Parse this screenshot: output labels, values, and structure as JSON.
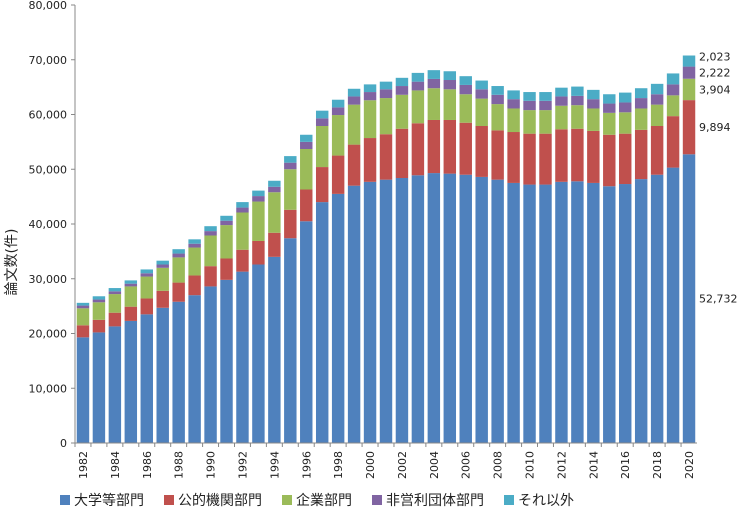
{
  "chart_data": {
    "type": "bar",
    "stacked": true,
    "ylabel": "論文数(件)",
    "ylim": [
      0,
      80000
    ],
    "yticks": [
      "0",
      "10,000",
      "20,000",
      "30,000",
      "40,000",
      "50,000",
      "60,000",
      "70,000",
      "80,000"
    ],
    "categories": [
      "1982",
      "1983",
      "1984",
      "1985",
      "1986",
      "1987",
      "1988",
      "1989",
      "1990",
      "1991",
      "1992",
      "1993",
      "1994",
      "1995",
      "1996",
      "1997",
      "1998",
      "1999",
      "2000",
      "2001",
      "2002",
      "2003",
      "2004",
      "2005",
      "2006",
      "2007",
      "2008",
      "2009",
      "2010",
      "2011",
      "2012",
      "2013",
      "2014",
      "2015",
      "2016",
      "2017",
      "2018",
      "2019",
      "2020"
    ],
    "xtick_labels": [
      "1982",
      "1984",
      "1986",
      "1988",
      "1990",
      "1992",
      "1994",
      "1996",
      "1998",
      "2000",
      "2002",
      "2004",
      "2006",
      "2008",
      "2010",
      "2012",
      "2014",
      "2016",
      "2018",
      "2020"
    ],
    "series": [
      {
        "name": "大学等部門",
        "color": "#4F81BD",
        "values": [
          19300,
          20200,
          21300,
          22300,
          23500,
          24700,
          25800,
          27000,
          28600,
          29800,
          31300,
          32600,
          34000,
          37400,
          40500,
          44000,
          45500,
          47000,
          47700,
          48100,
          48400,
          48900,
          49300,
          49200,
          49000,
          48600,
          48100,
          47500,
          47200,
          47200,
          47700,
          47800,
          47500,
          46900,
          47300,
          48200,
          49000,
          50300,
          52732
        ]
      },
      {
        "name": "公的機関部門",
        "color": "#C0504D",
        "values": [
          2200,
          2300,
          2500,
          2600,
          2900,
          3100,
          3500,
          3600,
          3700,
          3900,
          4000,
          4300,
          4400,
          5200,
          5800,
          6400,
          7000,
          7500,
          8000,
          8300,
          9000,
          9500,
          9700,
          9800,
          9500,
          9300,
          9000,
          9300,
          9300,
          9300,
          9600,
          9600,
          9500,
          9400,
          9200,
          9000,
          8900,
          9400,
          9894
        ]
      },
      {
        "name": "企業部門",
        "color": "#9BBB59",
        "values": [
          3100,
          3200,
          3400,
          3700,
          4000,
          4200,
          4600,
          5100,
          5600,
          6100,
          6800,
          7200,
          7400,
          7400,
          7400,
          7500,
          7400,
          7300,
          6900,
          6600,
          6200,
          6000,
          5800,
          5600,
          5200,
          5000,
          4800,
          4300,
          4300,
          4300,
          4300,
          4300,
          4100,
          4000,
          3900,
          3900,
          3900,
          3800,
          3904
        ]
      },
      {
        "name": "非営利団体部門",
        "color": "#8064A2",
        "values": [
          500,
          500,
          500,
          500,
          600,
          600,
          700,
          700,
          800,
          800,
          900,
          1000,
          1000,
          1200,
          1300,
          1400,
          1400,
          1500,
          1500,
          1600,
          1600,
          1600,
          1700,
          1700,
          1700,
          1700,
          1700,
          1700,
          1700,
          1700,
          1700,
          1700,
          1700,
          1700,
          1800,
          1900,
          1900,
          2000,
          2222
        ]
      },
      {
        "name": "それ以外",
        "color": "#4BACC6",
        "values": [
          500,
          600,
          600,
          600,
          700,
          700,
          800,
          800,
          900,
          900,
          1000,
          1000,
          1100,
          1200,
          1300,
          1400,
          1400,
          1400,
          1400,
          1400,
          1500,
          1600,
          1600,
          1600,
          1600,
          1600,
          1600,
          1600,
          1600,
          1600,
          1600,
          1700,
          1700,
          1700,
          1800,
          1800,
          1900,
          2000,
          2023
        ]
      }
    ],
    "annotations": [
      "52,732",
      "9,894",
      "3,904",
      "2,222",
      "2,023"
    ]
  }
}
